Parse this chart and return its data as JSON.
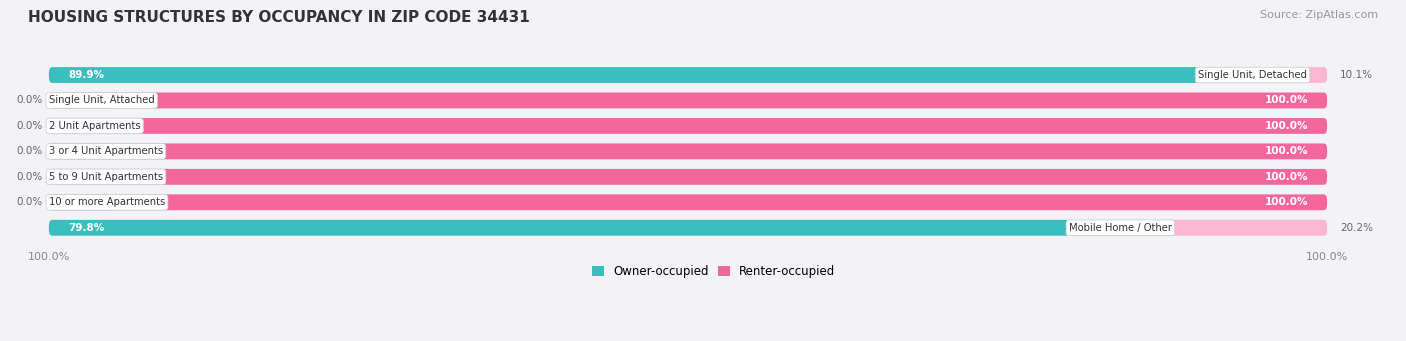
{
  "title": "HOUSING STRUCTURES BY OCCUPANCY IN ZIP CODE 34431",
  "source": "Source: ZipAtlas.com",
  "categories": [
    "Single Unit, Detached",
    "Single Unit, Attached",
    "2 Unit Apartments",
    "3 or 4 Unit Apartments",
    "5 to 9 Unit Apartments",
    "10 or more Apartments",
    "Mobile Home / Other"
  ],
  "owner_pct": [
    89.9,
    0.0,
    0.0,
    0.0,
    0.0,
    0.0,
    79.8
  ],
  "renter_pct": [
    10.1,
    100.0,
    100.0,
    100.0,
    100.0,
    100.0,
    20.2
  ],
  "owner_color": "#3abfbf",
  "owner_color_light": "#a8dede",
  "renter_color": "#f4679a",
  "renter_color_light": "#f9b8d0",
  "bar_bg_color": "#e2e2ea",
  "background_color": "#f2f2f7",
  "title_fontsize": 11,
  "source_fontsize": 8,
  "bar_height": 0.62,
  "bar_gap": 0.38,
  "xlim_left": 0,
  "xlim_right": 100
}
